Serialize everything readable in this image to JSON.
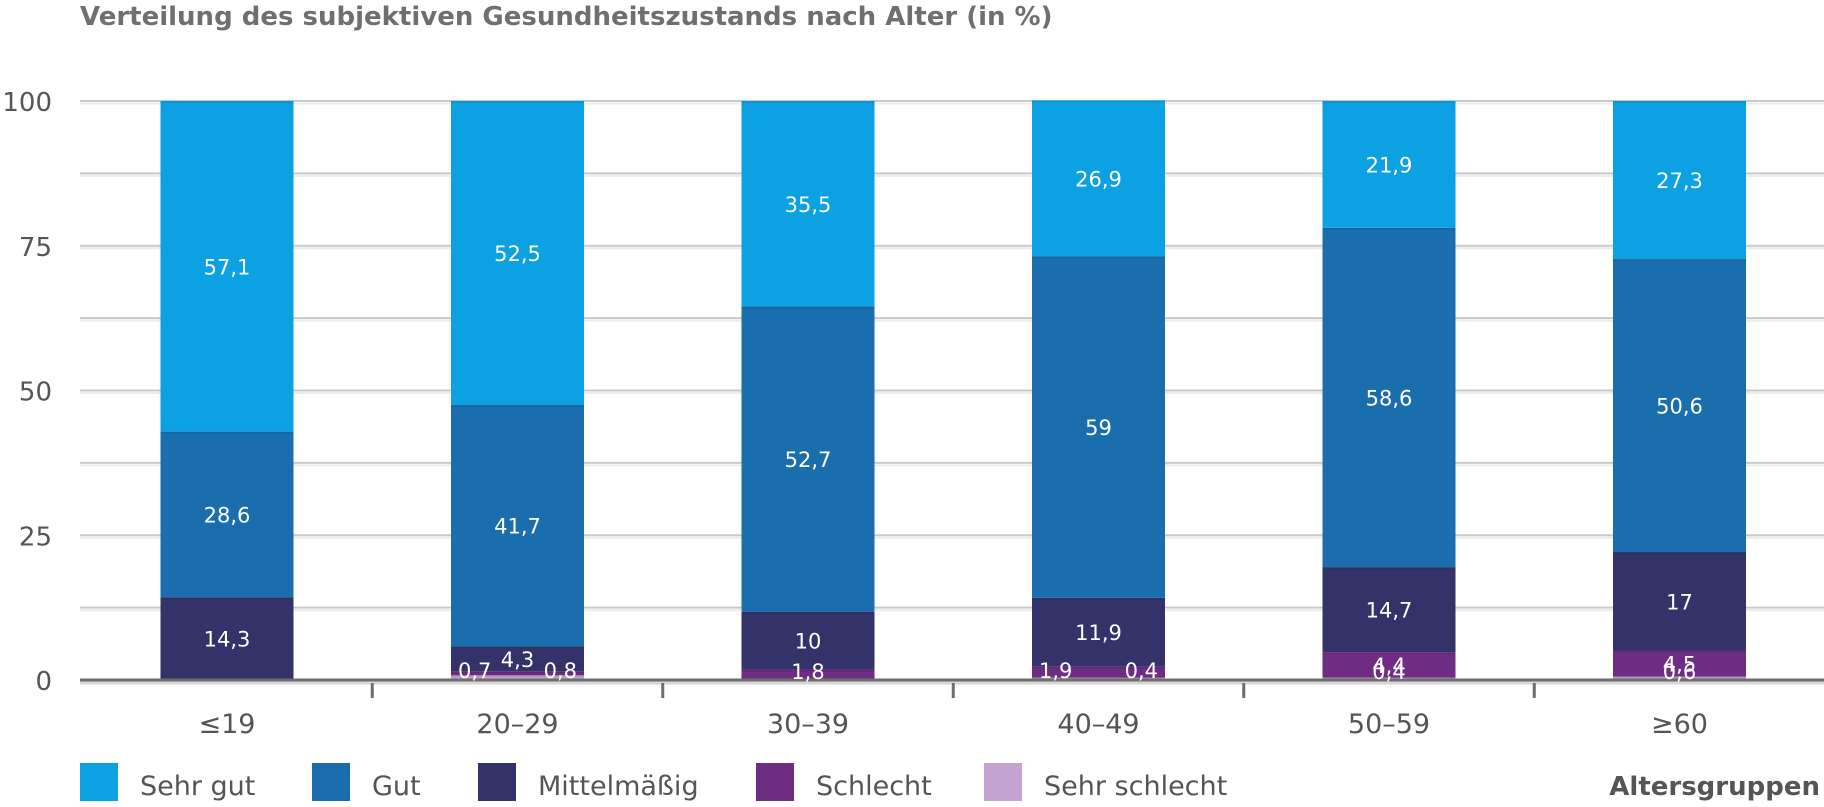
{
  "chart_data": {
    "type": "bar",
    "stacked": true,
    "title": "Verteilung des subjektiven Gesundheitszustands nach Alter (in %)",
    "xlabel": "Altersgruppen",
    "ylabel": "",
    "ylim": [
      0,
      100
    ],
    "yticks": [
      "0",
      "25",
      "50",
      "75",
      "100"
    ],
    "grid": true,
    "legend_position": "bottom",
    "categories": [
      "≤19",
      "20–29",
      "30–39",
      "40–49",
      "50–59",
      "≥60"
    ],
    "series": [
      {
        "name": "Sehr schlecht",
        "color": "#c5a3d0",
        "values": [
          0,
          0.8,
          0,
          0.4,
          0.4,
          0.6
        ],
        "labels": [
          "",
          "0,8",
          "",
          "0,4",
          "0,4",
          "0,6"
        ]
      },
      {
        "name": "Schlecht",
        "color": "#6e2c83",
        "values": [
          0,
          0.7,
          1.8,
          1.9,
          4.4,
          4.5
        ],
        "labels": [
          "",
          "0,7",
          "1,8",
          "1,9",
          "4,4",
          "4,5"
        ]
      },
      {
        "name": "Mittelmäßig",
        "color": "#33336a",
        "values": [
          14.3,
          4.3,
          10,
          11.9,
          14.7,
          17
        ],
        "labels": [
          "14,3",
          "4,3",
          "10",
          "11,9",
          "14,7",
          "17"
        ]
      },
      {
        "name": "Gut",
        "color": "#1b6eae",
        "values": [
          28.6,
          41.7,
          52.7,
          59,
          58.6,
          50.6
        ],
        "labels": [
          "28,6",
          "41,7",
          "52,7",
          "59",
          "58,6",
          "50,6"
        ]
      },
      {
        "name": "Sehr gut",
        "color": "#0ba1e3",
        "values": [
          57.1,
          52.5,
          35.5,
          26.9,
          21.9,
          27.3
        ],
        "labels": [
          "57,1",
          "52,5",
          "35,5",
          "26,9",
          "21,9",
          "27,3"
        ]
      }
    ],
    "legend_order": [
      "Sehr gut",
      "Gut",
      "Mittelmäßig",
      "Schlecht",
      "Sehr schlecht"
    ]
  }
}
